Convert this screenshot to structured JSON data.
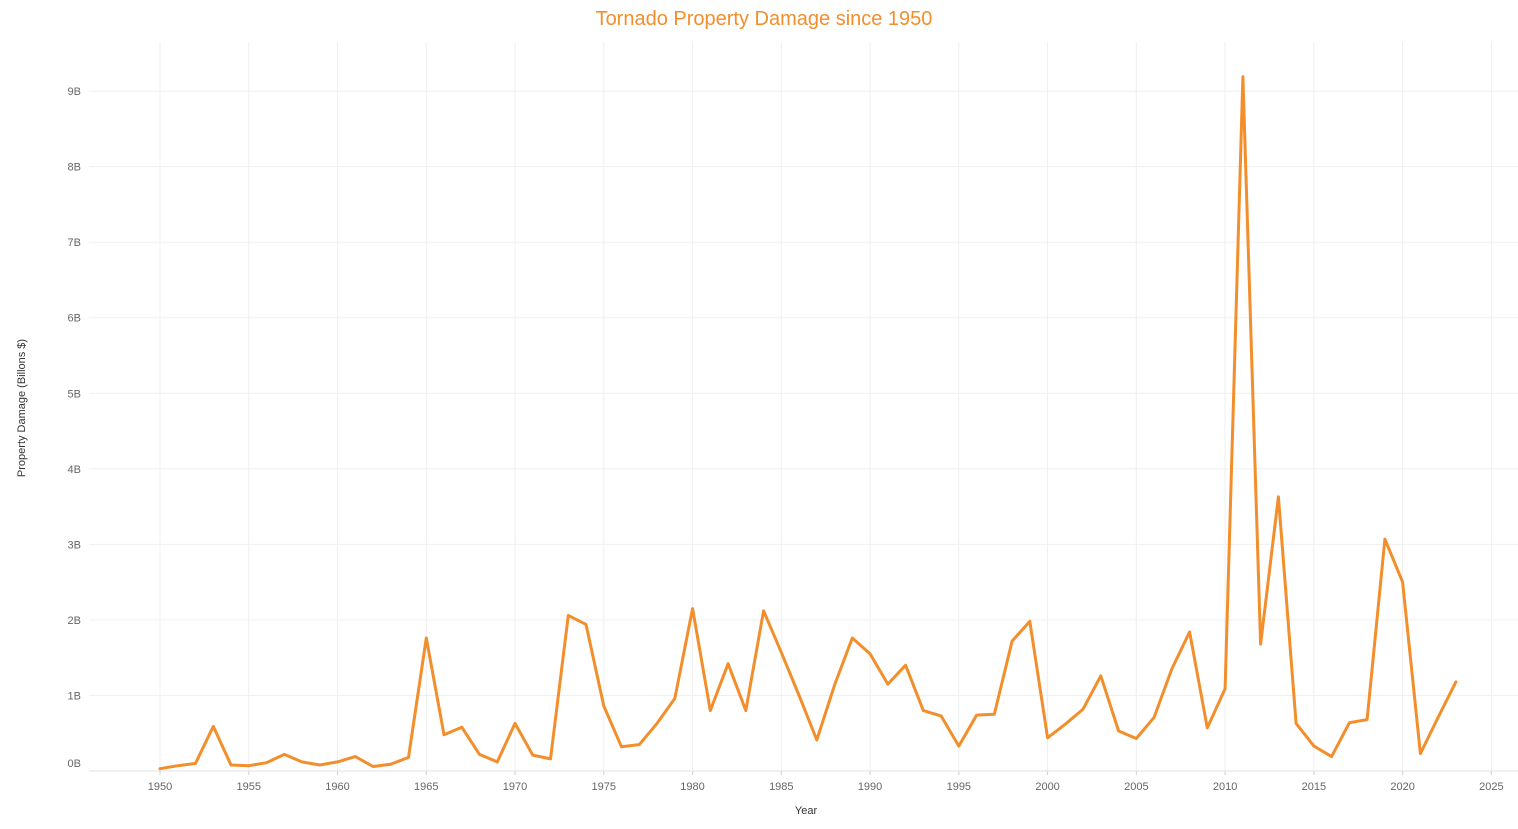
{
  "chart_data": {
    "type": "line",
    "title": "Tornado Property Damage since 1950",
    "xlabel": "Year",
    "ylabel": "Property Damage (Billons $)",
    "x_ticks": [
      "1950",
      "1955",
      "1960",
      "1965",
      "1970",
      "1975",
      "1980",
      "1985",
      "1990",
      "1995",
      "2000",
      "2005",
      "2010",
      "2015",
      "2020",
      "2025"
    ],
    "x_tick_values": [
      1950,
      1955,
      1960,
      1965,
      1970,
      1975,
      1980,
      1985,
      1990,
      1995,
      2000,
      2005,
      2010,
      2015,
      2020,
      2025
    ],
    "y_ticks": [
      "0B",
      "1B",
      "2B",
      "3B",
      "4B",
      "5B",
      "6B",
      "7B",
      "8B",
      "9B"
    ],
    "y_tick_values": [
      0,
      1,
      2,
      3,
      4,
      5,
      6,
      7,
      8,
      9
    ],
    "xlim": [
      1946,
      2026.5
    ],
    "ylim": [
      0,
      9.65
    ],
    "grid": true,
    "line_color": "#f28e2b",
    "x": [
      1950,
      1951,
      1952,
      1953,
      1954,
      1955,
      1956,
      1957,
      1958,
      1959,
      1960,
      1961,
      1962,
      1963,
      1964,
      1965,
      1966,
      1967,
      1968,
      1969,
      1970,
      1971,
      1972,
      1973,
      1974,
      1975,
      1976,
      1977,
      1978,
      1979,
      1980,
      1981,
      1982,
      1983,
      1984,
      1985,
      1986,
      1987,
      1988,
      1989,
      1990,
      1991,
      1992,
      1993,
      1994,
      1995,
      1996,
      1997,
      1998,
      1999,
      2000,
      2001,
      2002,
      2003,
      2004,
      2005,
      2006,
      2007,
      2008,
      2009,
      2010,
      2011,
      2012,
      2013,
      2014,
      2015,
      2016,
      2017,
      2018,
      2019,
      2020,
      2021,
      2022,
      2023
    ],
    "y": [
      0.03,
      0.07,
      0.1,
      0.59,
      0.08,
      0.07,
      0.11,
      0.22,
      0.12,
      0.08,
      0.12,
      0.19,
      0.06,
      0.09,
      0.18,
      1.76,
      0.48,
      0.58,
      0.22,
      0.12,
      0.63,
      0.21,
      0.16,
      2.06,
      1.94,
      0.86,
      0.32,
      0.35,
      0.63,
      0.96,
      2.15,
      0.8,
      1.42,
      0.8,
      2.12,
      1.57,
      1.0,
      0.41,
      1.14,
      1.76,
      1.55,
      1.15,
      1.4,
      0.8,
      0.73,
      0.33,
      0.74,
      0.75,
      1.72,
      1.98,
      0.44,
      0.62,
      0.82,
      1.26,
      0.53,
      0.43,
      0.71,
      1.35,
      1.84,
      0.57,
      1.09,
      9.19,
      1.68,
      3.63,
      0.63,
      0.33,
      0.19,
      0.64,
      0.68,
      3.07,
      2.5,
      0.23,
      0.71,
      1.18
    ]
  }
}
